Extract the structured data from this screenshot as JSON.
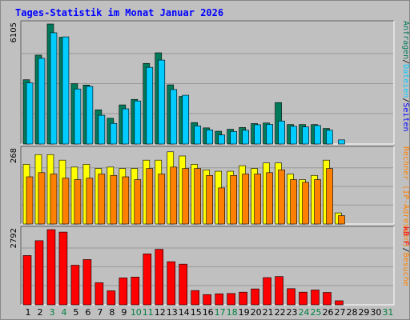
{
  "title": "Tages-Statistik im Monat Januar 2026",
  "colors": {
    "background": "#c0c0c0",
    "plot_background": "#c0c0c0",
    "grid": "#999999",
    "anfragen": "#007a5a",
    "dateien": "#00ccff",
    "rechner": "#ffff00",
    "besuche": "#ff8000",
    "kb": "#ff0000",
    "title": "#0000ff",
    "weekday_tick": "#000000",
    "weekend_tick": "#008040"
  },
  "chart_data": [
    {
      "type": "bar",
      "panel": "top",
      "y_max_label": "6105",
      "ylim": [
        0,
        6105
      ],
      "grid": true,
      "right_label": [
        {
          "text": "Anfragen",
          "color": "#007a5a"
        },
        {
          "text": "/",
          "color": "#000000"
        },
        {
          "text": "Dateien",
          "color": "#00ccff"
        },
        {
          "text": "/",
          "color": "#000000"
        },
        {
          "text": "Seiten",
          "color": "#0000ff"
        }
      ],
      "categories": [
        "1",
        "2",
        "3",
        "4",
        "5",
        "6",
        "7",
        "8",
        "9",
        "10",
        "11",
        "12",
        "13",
        "14",
        "15",
        "16",
        "17",
        "18",
        "19",
        "20",
        "21",
        "22",
        "23",
        "24",
        "25",
        "26",
        "27",
        "28",
        "29",
        "30",
        "31"
      ],
      "series": [
        {
          "name": "Anfragen",
          "color": "#007a5a",
          "values": [
            3270,
            4520,
            6105,
            5430,
            3070,
            3000,
            1740,
            1310,
            1990,
            2270,
            4100,
            4640,
            3010,
            2420,
            1090,
            820,
            650,
            750,
            840,
            1040,
            1070,
            2110,
            990,
            990,
            990,
            790,
            0,
            0,
            0,
            0,
            0
          ]
        },
        {
          "name": "Dateien",
          "color": "#00ccff",
          "values": [
            3110,
            4360,
            5660,
            5450,
            2800,
            2930,
            1460,
            1050,
            1790,
            2190,
            3900,
            4270,
            2770,
            2480,
            920,
            720,
            460,
            640,
            700,
            980,
            1000,
            1170,
            900,
            870,
            940,
            700,
            210,
            0,
            0,
            0,
            0
          ]
        }
      ]
    },
    {
      "type": "bar",
      "panel": "middle",
      "y_max_label": "268",
      "ylim": [
        0,
        268
      ],
      "grid": true,
      "right_label": [
        {
          "text": "Rechner (IP-Adressen)",
          "color": "#ff8000"
        },
        {
          "text": "/",
          "color": "#000000"
        },
        {
          "text": "Besuche",
          "color": "#ff8000"
        }
      ],
      "categories": [
        "1",
        "2",
        "3",
        "4",
        "5",
        "6",
        "7",
        "8",
        "9",
        "10",
        "11",
        "12",
        "13",
        "14",
        "15",
        "16",
        "17",
        "18",
        "19",
        "20",
        "21",
        "22",
        "23",
        "24",
        "25",
        "26",
        "27",
        "28",
        "29",
        "30",
        "31"
      ],
      "series": [
        {
          "name": "Rechner (IP-Adressen)",
          "color": "#ffff00",
          "values": [
            215,
            250,
            250,
            230,
            205,
            215,
            200,
            205,
            200,
            200,
            230,
            230,
            260,
            245,
            215,
            195,
            190,
            190,
            210,
            200,
            220,
            220,
            180,
            160,
            175,
            230,
            40,
            0,
            0,
            0,
            0
          ]
        },
        {
          "name": "Besuche",
          "color": "#ff8000",
          "values": [
            170,
            185,
            180,
            165,
            160,
            165,
            180,
            175,
            170,
            160,
            200,
            180,
            205,
            200,
            200,
            175,
            130,
            175,
            180,
            180,
            185,
            195,
            160,
            150,
            160,
            200,
            30,
            0,
            0,
            0,
            0
          ]
        }
      ]
    },
    {
      "type": "bar",
      "panel": "bottom",
      "y_max_label": "2792",
      "ylim": [
        0,
        2792
      ],
      "grid": true,
      "right_label": [
        {
          "text": "kB F",
          "color": "#ff0000"
        }
      ],
      "categories": [
        "1",
        "2",
        "3",
        "4",
        "5",
        "6",
        "7",
        "8",
        "9",
        "10",
        "11",
        "12",
        "13",
        "14",
        "15",
        "16",
        "17",
        "18",
        "19",
        "20",
        "21",
        "22",
        "23",
        "24",
        "25",
        "26",
        "27",
        "28",
        "29",
        "30",
        "31"
      ],
      "series": [
        {
          "name": "kB F",
          "color": "#ff0000",
          "values": [
            1830,
            2380,
            2792,
            2700,
            1470,
            1680,
            820,
            520,
            1000,
            1030,
            1890,
            2060,
            1600,
            1510,
            530,
            380,
            410,
            420,
            470,
            590,
            1010,
            1050,
            600,
            470,
            550,
            460,
            150,
            0,
            0,
            0,
            0
          ]
        }
      ]
    }
  ],
  "x_ticks": [
    {
      "label": "1",
      "weekend": false
    },
    {
      "label": "2",
      "weekend": false
    },
    {
      "label": "3",
      "weekend": true
    },
    {
      "label": "4",
      "weekend": true
    },
    {
      "label": "5",
      "weekend": false
    },
    {
      "label": "6",
      "weekend": false
    },
    {
      "label": "7",
      "weekend": false
    },
    {
      "label": "8",
      "weekend": false
    },
    {
      "label": "9",
      "weekend": false
    },
    {
      "label": "10",
      "weekend": true
    },
    {
      "label": "11",
      "weekend": true
    },
    {
      "label": "12",
      "weekend": false
    },
    {
      "label": "13",
      "weekend": false
    },
    {
      "label": "14",
      "weekend": false
    },
    {
      "label": "15",
      "weekend": false
    },
    {
      "label": "16",
      "weekend": false
    },
    {
      "label": "17",
      "weekend": true
    },
    {
      "label": "18",
      "weekend": true
    },
    {
      "label": "19",
      "weekend": false
    },
    {
      "label": "20",
      "weekend": false
    },
    {
      "label": "21",
      "weekend": false
    },
    {
      "label": "22",
      "weekend": false
    },
    {
      "label": "23",
      "weekend": false
    },
    {
      "label": "24",
      "weekend": true
    },
    {
      "label": "25",
      "weekend": true
    },
    {
      "label": "26",
      "weekend": false
    },
    {
      "label": "27",
      "weekend": false
    },
    {
      "label": "28",
      "weekend": false
    },
    {
      "label": "29",
      "weekend": false
    },
    {
      "label": "30",
      "weekend": false
    },
    {
      "label": "31",
      "weekend": true
    }
  ]
}
